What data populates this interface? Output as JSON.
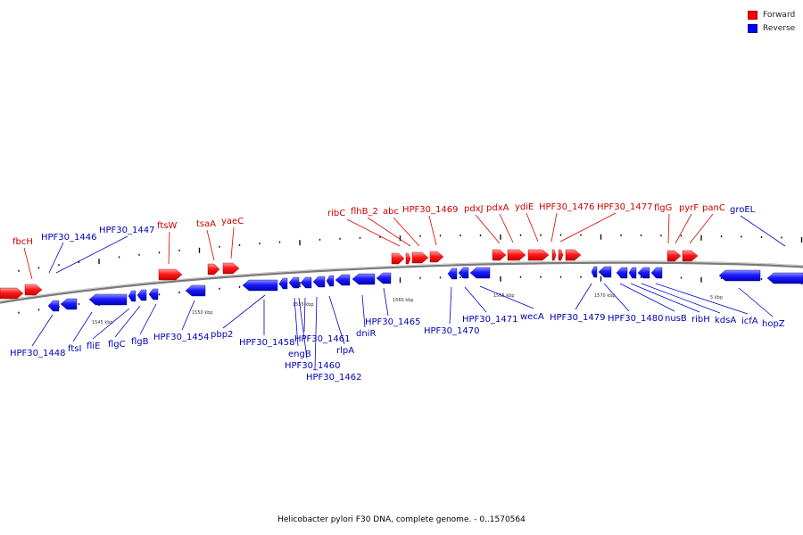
{
  "legend": {
    "forward": {
      "label": "Forward",
      "color": "#ff0000"
    },
    "reverse": {
      "label": "Reverse",
      "color": "#0000ff"
    }
  },
  "caption": "Helicobacter pylori F30 DNA, complete genome. - 0..1570564",
  "tick_labels": [
    "1545 kbp",
    "1550 kbp",
    "1555 kbp",
    "1560 kbp",
    "1565 kbp",
    "1570 kbp",
    "5 kbp"
  ],
  "forward_gene_labels": [
    "fbcH",
    "ftsW",
    "tsaA",
    "yaeC",
    "ribC",
    "flhB_2",
    "abc",
    "HPF30_1469",
    "pdxJ",
    "pdxA",
    "ydiE",
    "HPF30_1476",
    "HPF30_1477",
    "flgG",
    "pyrF",
    "panC"
  ],
  "reverse_gene_labels": [
    "HPF30_1446",
    "HPF30_1447",
    "groEL",
    "HPF30_1448",
    "ftsI",
    "fliE",
    "flgC",
    "flgB",
    "HPF30_1454",
    "pbp2",
    "HPF30_1458",
    "engB",
    "HPF30_1461",
    "HPF30_1460",
    "HPF30_1462",
    "rlpA",
    "dniR",
    "HPF30_1465",
    "HPF30_1470",
    "HPF30_1471",
    "wecA",
    "HPF30_1479",
    "HPF30_1480",
    "nusB",
    "ribH",
    "kdsA",
    "icfA",
    "hopZ"
  ]
}
